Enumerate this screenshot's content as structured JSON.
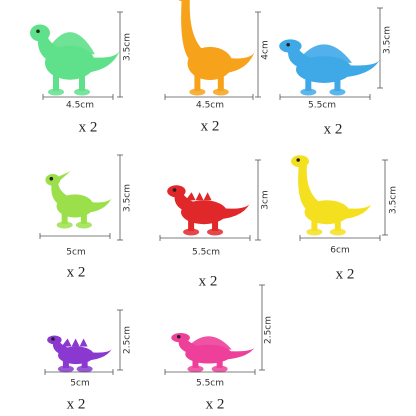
{
  "items": [
    {
      "width": "4.5cm",
      "height": "3.5cm",
      "quantity": "x 2"
    },
    {
      "width": "4.5cm",
      "height": "4cm",
      "quantity": "x 2"
    },
    {
      "width": "5.5cm",
      "height": "3.5cm",
      "quantity": "x 2"
    },
    {
      "width": "5cm",
      "height": "3.5cm",
      "quantity": "x 2"
    },
    {
      "width": "5.5cm",
      "height": "3cm",
      "quantity": "x 2"
    },
    {
      "width": "6cm",
      "height": "3.5cm",
      "quantity": "x 2"
    },
    {
      "width": "5cm",
      "height": "2.5cm",
      "quantity": "x 2"
    },
    {
      "width": "5.5cm",
      "height": "2.5cm",
      "quantity": "x 2"
    }
  ]
}
